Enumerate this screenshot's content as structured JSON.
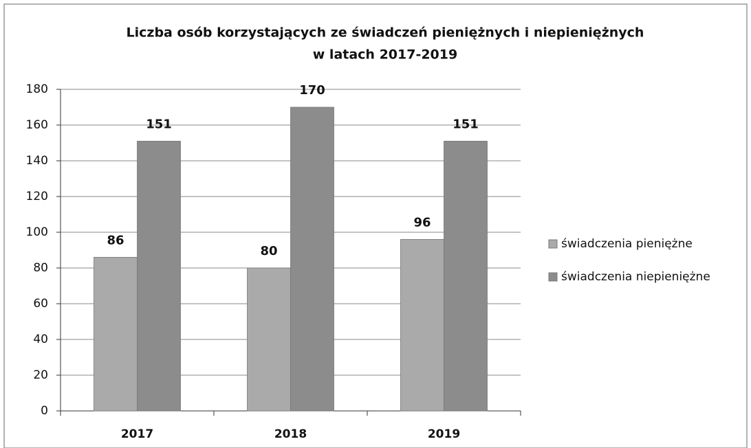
{
  "chart_data": {
    "type": "bar",
    "title": [
      "Liczba osób korzystających ze świadczeń pieniężnych i niepieniężnych",
      "w latach 2017-2019"
    ],
    "categories": [
      "2017",
      "2018",
      "2019"
    ],
    "series": [
      {
        "name": "świadczenia pieniężne",
        "color": "#aaaaaa",
        "values": [
          86,
          80,
          96
        ]
      },
      {
        "name": "świadczenia niepieniężne",
        "color": "#8c8c8c",
        "values": [
          151,
          170,
          151
        ]
      }
    ],
    "ylim": [
      0,
      180
    ],
    "yticks": [
      0,
      20,
      40,
      60,
      80,
      100,
      120,
      140,
      160,
      180
    ],
    "grid": true,
    "legend": "right"
  }
}
